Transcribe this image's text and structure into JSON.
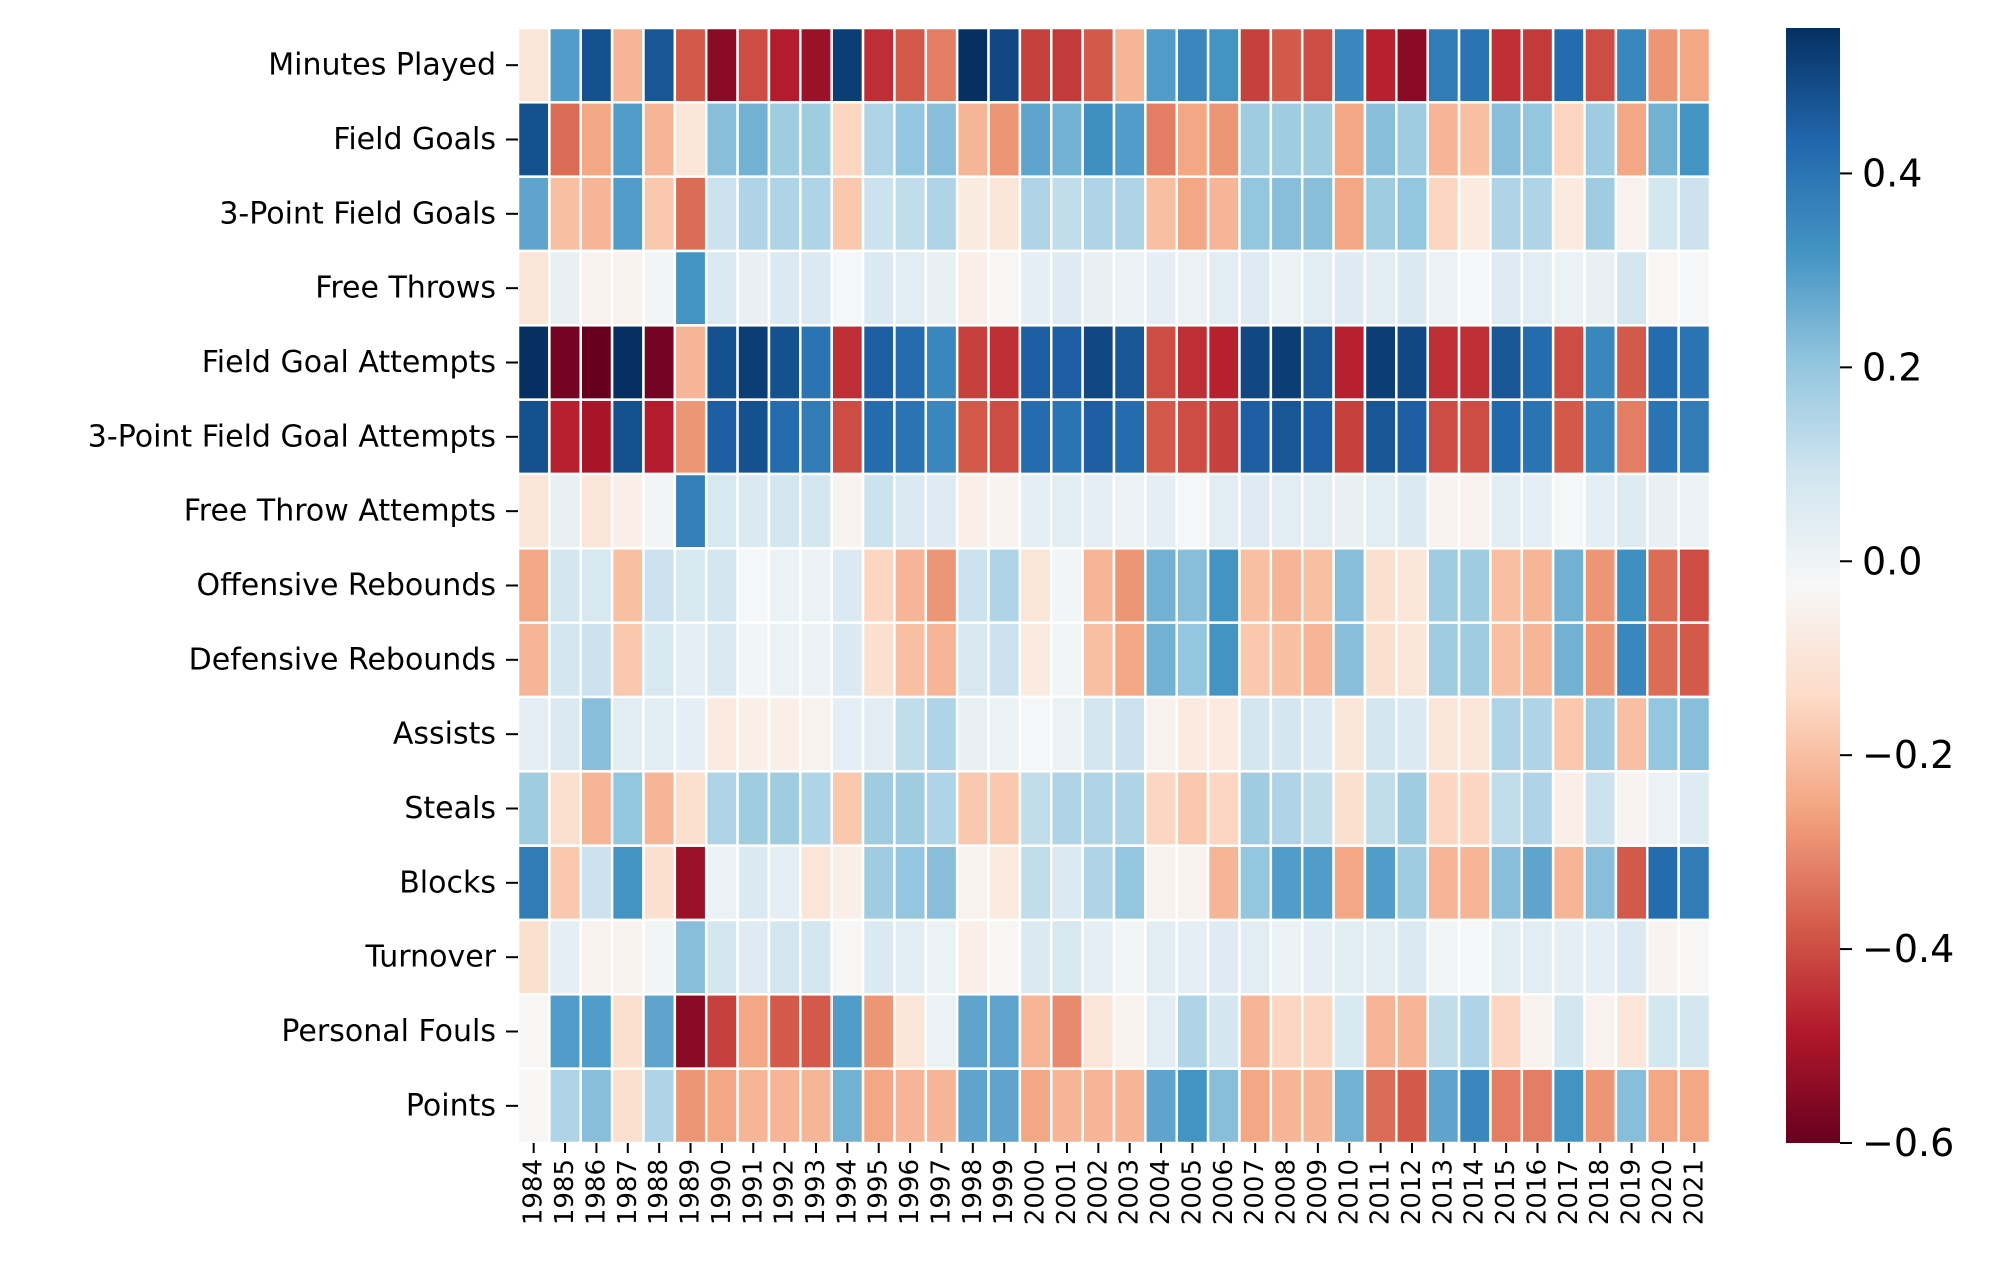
{
  "chart_data": {
    "type": "heatmap",
    "title": "",
    "xlabel": "",
    "ylabel": "",
    "grid": false,
    "colormap": "RdBu",
    "vmin": -0.6,
    "vmax": 0.55,
    "colorbar_ticks": [
      0.4,
      0.2,
      0.0,
      -0.2,
      -0.4,
      -0.6
    ],
    "colorbar_tick_labels": [
      "0.4",
      "0.2",
      "0.0",
      "−0.2",
      "−0.4",
      "−0.6"
    ],
    "x_categories": [
      "1984",
      "1985",
      "1986",
      "1987",
      "1988",
      "1989",
      "1990",
      "1991",
      "1992",
      "1993",
      "1994",
      "1995",
      "1996",
      "1997",
      "1998",
      "1999",
      "2000",
      "2001",
      "2002",
      "2003",
      "2004",
      "2005",
      "2006",
      "2007",
      "2008",
      "2009",
      "2010",
      "2011",
      "2012",
      "2013",
      "2014",
      "2015",
      "2016",
      "2017",
      "2018",
      "2019",
      "2020",
      "2021"
    ],
    "y_categories": [
      "Minutes Played",
      "Field Goals",
      "3-Point Field Goals",
      "Free Throws",
      "Field Goal Attempts",
      "3-Point Field Goal Attempts",
      "Free Throw Attempts",
      "Offensive Rebounds",
      "Defensive Rebounds",
      "Assists",
      "Steals",
      "Blocks",
      "Turnover",
      "Personal Fouls",
      "Points"
    ],
    "values": [
      [
        -0.1,
        0.3,
        0.48,
        -0.22,
        0.47,
        -0.38,
        -0.55,
        -0.4,
        -0.48,
        -0.52,
        0.52,
        -0.45,
        -0.38,
        -0.32,
        0.55,
        0.5,
        -0.42,
        -0.43,
        -0.38,
        -0.22,
        0.3,
        0.35,
        0.32,
        -0.42,
        -0.38,
        -0.4,
        0.35,
        -0.47,
        -0.55,
        0.38,
        0.4,
        -0.45,
        -0.43,
        0.42,
        -0.4,
        0.35,
        -0.28,
        -0.25
      ],
      [
        0.48,
        -0.35,
        -0.25,
        0.3,
        -0.22,
        -0.1,
        0.22,
        0.25,
        0.18,
        0.18,
        -0.15,
        0.15,
        0.2,
        0.22,
        -0.22,
        -0.28,
        0.28,
        0.25,
        0.33,
        0.3,
        -0.32,
        -0.25,
        -0.28,
        0.18,
        0.18,
        0.18,
        -0.25,
        0.22,
        0.18,
        -0.22,
        -0.2,
        0.22,
        0.2,
        -0.15,
        0.18,
        -0.25,
        0.25,
        0.32
      ],
      [
        0.28,
        -0.2,
        -0.22,
        0.3,
        -0.18,
        -0.35,
        0.1,
        0.15,
        0.15,
        0.15,
        -0.18,
        0.1,
        0.12,
        0.15,
        -0.08,
        -0.1,
        0.15,
        0.12,
        0.15,
        0.15,
        -0.2,
        -0.25,
        -0.22,
        0.2,
        0.22,
        0.22,
        -0.25,
        0.18,
        0.2,
        -0.15,
        -0.08,
        0.15,
        0.15,
        -0.08,
        0.18,
        -0.05,
        0.08,
        0.1
      ],
      [
        -0.1,
        0.02,
        -0.05,
        -0.05,
        -0.01,
        0.32,
        0.06,
        0.02,
        0.06,
        0.06,
        -0.02,
        0.06,
        0.04,
        0.02,
        -0.06,
        -0.03,
        0.03,
        0.05,
        0.02,
        0.01,
        0.03,
        0.01,
        0.04,
        0.05,
        0.01,
        0.04,
        0.05,
        0.04,
        0.06,
        0.01,
        -0.02,
        0.05,
        0.04,
        0.01,
        0.02,
        0.08,
        -0.03,
        -0.02
      ],
      [
        0.55,
        -0.58,
        -0.6,
        0.55,
        -0.58,
        -0.22,
        0.48,
        0.52,
        0.48,
        0.4,
        -0.45,
        0.45,
        0.42,
        0.35,
        -0.42,
        -0.45,
        0.45,
        0.45,
        0.5,
        0.47,
        -0.4,
        -0.45,
        -0.47,
        0.5,
        0.52,
        0.47,
        -0.47,
        0.52,
        0.5,
        -0.45,
        -0.45,
        0.47,
        0.42,
        -0.4,
        0.35,
        -0.38,
        0.42,
        0.4
      ],
      [
        0.48,
        -0.47,
        -0.5,
        0.48,
        -0.48,
        -0.28,
        0.45,
        0.48,
        0.42,
        0.38,
        -0.4,
        0.42,
        0.4,
        0.35,
        -0.38,
        -0.4,
        0.42,
        0.4,
        0.45,
        0.42,
        -0.38,
        -0.4,
        -0.42,
        0.45,
        0.47,
        0.45,
        -0.42,
        0.47,
        0.45,
        -0.4,
        -0.4,
        0.43,
        0.4,
        -0.38,
        0.35,
        -0.32,
        0.4,
        0.38
      ],
      [
        -0.1,
        0.02,
        -0.1,
        -0.06,
        -0.01,
        0.37,
        0.07,
        0.06,
        0.08,
        0.08,
        -0.04,
        0.1,
        0.06,
        0.05,
        -0.06,
        -0.04,
        0.03,
        0.04,
        0.03,
        0.01,
        0.03,
        -0.02,
        0.04,
        0.05,
        0.04,
        0.04,
        0.02,
        0.04,
        0.06,
        -0.04,
        -0.05,
        0.04,
        0.03,
        -0.02,
        0.03,
        0.05,
        0.02,
        0.01
      ],
      [
        -0.25,
        0.08,
        0.07,
        -0.2,
        0.1,
        0.07,
        0.08,
        -0.02,
        0.01,
        0.01,
        0.06,
        -0.15,
        -0.22,
        -0.28,
        0.1,
        0.15,
        -0.1,
        -0.01,
        -0.22,
        -0.28,
        0.25,
        0.22,
        0.32,
        -0.2,
        -0.22,
        -0.2,
        0.22,
        -0.12,
        -0.1,
        0.18,
        0.18,
        -0.2,
        -0.22,
        0.25,
        -0.28,
        0.33,
        -0.35,
        -0.4
      ],
      [
        -0.22,
        0.08,
        0.1,
        -0.18,
        0.07,
        0.03,
        0.06,
        -0.01,
        0.01,
        0.01,
        0.06,
        -0.12,
        -0.2,
        -0.22,
        0.07,
        0.1,
        -0.08,
        -0.01,
        -0.2,
        -0.25,
        0.25,
        0.2,
        0.32,
        -0.18,
        -0.2,
        -0.22,
        0.22,
        -0.12,
        -0.1,
        0.18,
        0.18,
        -0.2,
        -0.22,
        0.25,
        -0.28,
        0.35,
        -0.35,
        -0.38
      ],
      [
        0.03,
        0.06,
        0.22,
        0.04,
        0.04,
        0.03,
        -0.08,
        -0.06,
        -0.06,
        -0.05,
        0.03,
        0.04,
        0.12,
        0.15,
        0.02,
        0.01,
        -0.02,
        0.01,
        0.08,
        0.1,
        -0.05,
        -0.08,
        -0.08,
        0.08,
        0.08,
        0.06,
        -0.1,
        0.08,
        0.06,
        -0.1,
        -0.1,
        0.15,
        0.15,
        -0.18,
        0.18,
        -0.2,
        0.2,
        0.22
      ],
      [
        0.18,
        -0.12,
        -0.22,
        0.2,
        -0.22,
        -0.12,
        0.15,
        0.18,
        0.18,
        0.15,
        -0.18,
        0.18,
        0.18,
        0.15,
        -0.18,
        -0.18,
        0.12,
        0.15,
        0.15,
        0.15,
        -0.15,
        -0.18,
        -0.15,
        0.18,
        0.15,
        0.12,
        -0.12,
        0.12,
        0.18,
        -0.15,
        -0.15,
        0.12,
        0.15,
        -0.06,
        0.1,
        -0.04,
        0.01,
        0.05
      ],
      [
        0.38,
        -0.18,
        0.1,
        0.32,
        -0.12,
        -0.52,
        0.01,
        0.06,
        0.03,
        -0.1,
        -0.06,
        0.18,
        0.2,
        0.22,
        -0.05,
        -0.08,
        0.12,
        0.06,
        0.15,
        0.2,
        -0.05,
        -0.05,
        -0.22,
        0.2,
        0.3,
        0.3,
        -0.25,
        0.3,
        0.18,
        -0.22,
        -0.22,
        0.22,
        0.28,
        -0.22,
        0.22,
        -0.38,
        0.42,
        0.38
      ],
      [
        -0.12,
        0.03,
        -0.05,
        -0.05,
        -0.01,
        0.22,
        0.08,
        0.05,
        0.08,
        0.08,
        -0.03,
        0.06,
        0.04,
        0.01,
        -0.06,
        -0.03,
        0.06,
        0.07,
        0.03,
        -0.01,
        0.04,
        0.03,
        0.05,
        0.04,
        0.01,
        0.03,
        0.04,
        0.04,
        0.06,
        -0.01,
        -0.02,
        0.04,
        0.04,
        0.03,
        0.03,
        0.06,
        -0.04,
        -0.03
      ],
      [
        -0.03,
        0.3,
        0.3,
        -0.12,
        0.28,
        -0.55,
        -0.42,
        -0.25,
        -0.38,
        -0.38,
        0.3,
        -0.28,
        -0.1,
        0.01,
        0.28,
        0.28,
        -0.22,
        -0.3,
        -0.1,
        -0.05,
        0.04,
        0.15,
        0.08,
        -0.22,
        -0.15,
        -0.15,
        0.07,
        -0.22,
        -0.22,
        0.12,
        0.15,
        -0.15,
        -0.05,
        0.08,
        -0.05,
        -0.1,
        0.08,
        0.08
      ],
      [
        -0.03,
        0.15,
        0.22,
        -0.12,
        0.15,
        -0.28,
        -0.25,
        -0.22,
        -0.22,
        -0.22,
        0.25,
        -0.25,
        -0.22,
        -0.22,
        0.28,
        0.28,
        -0.25,
        -0.22,
        -0.22,
        -0.22,
        0.28,
        0.32,
        0.22,
        -0.25,
        -0.22,
        -0.22,
        0.25,
        -0.35,
        -0.38,
        0.28,
        0.35,
        -0.32,
        -0.32,
        0.32,
        -0.28,
        0.22,
        -0.25,
        -0.25
      ]
    ]
  }
}
